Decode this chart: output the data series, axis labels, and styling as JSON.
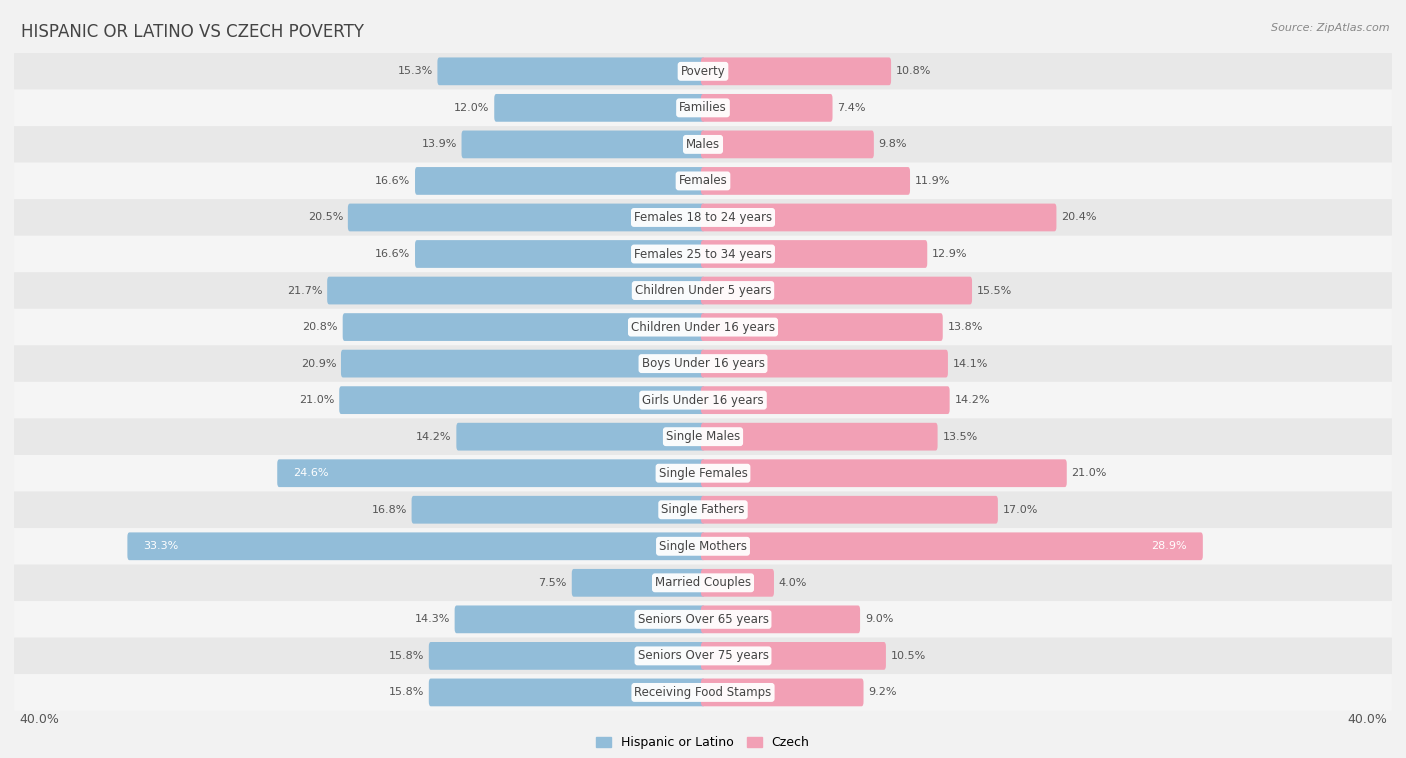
{
  "title": "HISPANIC OR LATINO VS CZECH POVERTY",
  "source": "Source: ZipAtlas.com",
  "categories": [
    "Poverty",
    "Families",
    "Males",
    "Females",
    "Females 18 to 24 years",
    "Females 25 to 34 years",
    "Children Under 5 years",
    "Children Under 16 years",
    "Boys Under 16 years",
    "Girls Under 16 years",
    "Single Males",
    "Single Females",
    "Single Fathers",
    "Single Mothers",
    "Married Couples",
    "Seniors Over 65 years",
    "Seniors Over 75 years",
    "Receiving Food Stamps"
  ],
  "hispanic_values": [
    15.3,
    12.0,
    13.9,
    16.6,
    20.5,
    16.6,
    21.7,
    20.8,
    20.9,
    21.0,
    14.2,
    24.6,
    16.8,
    33.3,
    7.5,
    14.3,
    15.8,
    15.8
  ],
  "czech_values": [
    10.8,
    7.4,
    9.8,
    11.9,
    20.4,
    12.9,
    15.5,
    13.8,
    14.1,
    14.2,
    13.5,
    21.0,
    17.0,
    28.9,
    4.0,
    9.0,
    10.5,
    9.2
  ],
  "hispanic_color": "#92BDD9",
  "czech_color": "#F2A0B5",
  "background_color": "#f2f2f2",
  "row_color_even": "#e8e8e8",
  "row_color_odd": "#f5f5f5",
  "xlim": 40.0,
  "legend_labels": [
    "Hispanic or Latino",
    "Czech"
  ],
  "title_fontsize": 12,
  "label_fontsize": 8.5,
  "value_fontsize": 8.0
}
